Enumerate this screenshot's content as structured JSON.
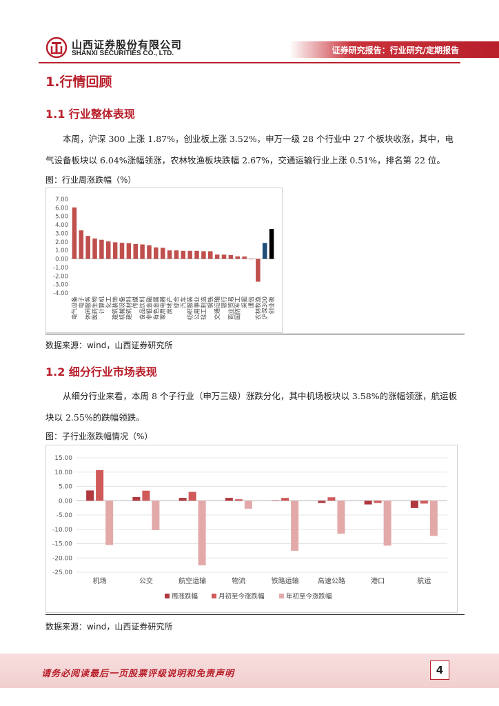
{
  "header": {
    "company_cn": "山西证券股份有限公司",
    "company_en": "SHANXI SECURITIES CO., LTD.",
    "report_type": "证券研究报告：行业研究/定期报告",
    "logo_icon": "shanxi-securities-logo-icon",
    "accent_color": "#b81f2b"
  },
  "section1": {
    "title": "1.行情回顾",
    "sub1_title": "1.1  行业整体表现",
    "sub1_para": "本周，沪深 300 上涨 1.87%，创业板上涨 3.52%，申万一级 28 个行业中 27 个板块收涨，其中，电气设备板块以 6.04%涨幅领涨，农林牧渔板块跌幅 2.67%，交通运输行业上涨 0.51%，排名第 22 位。",
    "fig1_title": "图：行业周涨跌幅（%）",
    "fig1_source": "数据来源：wind，山西证券研究所",
    "sub2_title": "1.2  细分行业市场表现",
    "sub2_para": "从细分行业来看，本周 8 个子行业（申万三级）涨跌分化，其中机场板块以 3.58%的涨幅领涨，航运板块以 2.55%的跌幅领跌。",
    "fig2_title": "图：子行业涨跌幅情况（%）",
    "fig2_source": "数据来源：wind，山西证券研究所"
  },
  "chart_data": [
    {
      "type": "bar",
      "title": "",
      "ylim": [
        -4,
        7
      ],
      "yticks": [
        "7.00",
        "6.00",
        "5.00",
        "4.00",
        "3.00",
        "2.00",
        "1.00",
        "0.00",
        "-1.00",
        "-2.00",
        "-3.00",
        "-4.00"
      ],
      "categories": [
        "电气设备",
        "电子",
        "休闲服务",
        "医药生物",
        "计算机",
        "化工",
        "建筑装饰",
        "机械设备",
        "建筑材料",
        "传媒",
        "食品饮料",
        "非银金融",
        "有色金属",
        "家用电器",
        "房地产",
        "综合",
        "汽车",
        "纺织服装",
        "公用事业",
        "轻工制造",
        "钢铁",
        "交通运输",
        "银行",
        "商业贸易",
        "国防军工",
        "采掘",
        "通信",
        "农林牧渔",
        "沪深300",
        "创业板"
      ],
      "values": [
        6.04,
        3.35,
        2.7,
        2.4,
        2.25,
        2.05,
        1.95,
        1.9,
        1.85,
        1.75,
        1.7,
        1.6,
        1.35,
        1.3,
        1.0,
        1.0,
        0.95,
        0.95,
        0.95,
        0.9,
        0.9,
        0.51,
        0.5,
        0.45,
        0.3,
        0.28,
        0.0,
        -2.67,
        1.87,
        3.52
      ],
      "bar_colors": [
        "#c0504d",
        "#c0504d",
        "#c0504d",
        "#c0504d",
        "#c0504d",
        "#c0504d",
        "#c0504d",
        "#c0504d",
        "#c0504d",
        "#c0504d",
        "#c0504d",
        "#c0504d",
        "#c0504d",
        "#c0504d",
        "#c0504d",
        "#c0504d",
        "#c0504d",
        "#c0504d",
        "#c0504d",
        "#c0504d",
        "#c0504d",
        "#c0504d",
        "#c0504d",
        "#c0504d",
        "#c0504d",
        "#c0504d",
        "#c0504d",
        "#c0504d",
        "#1f4e79",
        "#000000"
      ],
      "grid": false
    },
    {
      "type": "bar",
      "title": "",
      "ylim": [
        -25,
        15
      ],
      "yticks": [
        "15.00",
        "10.00",
        "5.00",
        "0.00",
        "-5.00",
        "-10.00",
        "-15.00",
        "-20.00",
        "-25.00"
      ],
      "categories": [
        "机场",
        "公交",
        "航空运输",
        "物流",
        "铁路运输",
        "高速公路",
        "港口",
        "航运"
      ],
      "series": [
        {
          "name": "周涨跌幅",
          "color": "#b0383f",
          "values": [
            3.58,
            1.3,
            1.0,
            1.0,
            0.0,
            -0.8,
            -1.3,
            -2.55
          ]
        },
        {
          "name": "月初至今涨跌幅",
          "color": "#d05a5a",
          "values": [
            10.7,
            3.5,
            3.1,
            0.5,
            1.0,
            1.2,
            -0.8,
            -1.0
          ]
        },
        {
          "name": "年初至今涨跌幅",
          "color": "#e3a9a9",
          "values": [
            -15.5,
            -10.3,
            -22.6,
            -2.8,
            -17.5,
            -11.5,
            -15.7,
            -12.3
          ]
        }
      ],
      "legend": "bottom",
      "grid": true
    }
  ],
  "footer": {
    "disclaimer": "请务必阅读最后一页股票评级说明和免责声明",
    "page_number": "4"
  }
}
